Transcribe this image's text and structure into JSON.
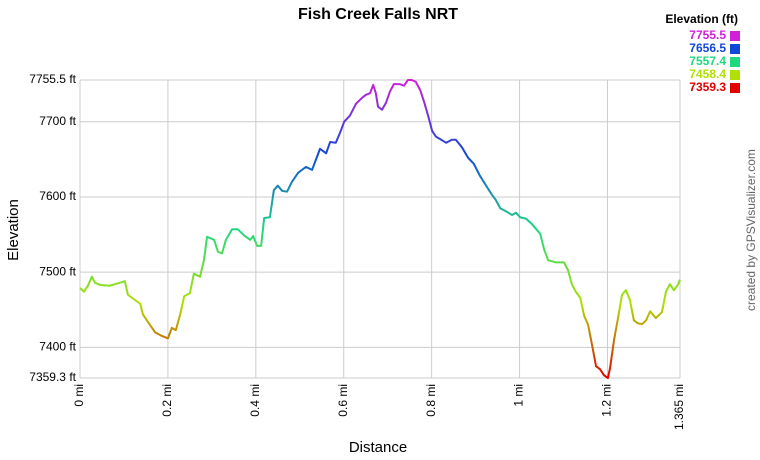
{
  "chart_data": {
    "type": "line",
    "title": "Fish Creek Falls NRT",
    "x_label": "Distance",
    "y_label": "Elevation",
    "credit": "created by GPSVisualizer.com",
    "legend": {
      "title": "Elevation (ft)",
      "entries": [
        {
          "value": 7755.5,
          "color": "#d020d8"
        },
        {
          "value": 7656.5,
          "color": "#1048d8"
        },
        {
          "value": 7557.4,
          "color": "#20d880"
        },
        {
          "value": 7458.4,
          "color": "#b0e000"
        },
        {
          "value": 7359.3,
          "color": "#e00000"
        }
      ]
    },
    "x": [
      0,
      0.009,
      0.018,
      0.027,
      0.034,
      0.046,
      0.068,
      0.091,
      0.102,
      0.109,
      0.125,
      0.137,
      0.143,
      0.159,
      0.171,
      0.187,
      0.2,
      0.209,
      0.218,
      0.228,
      0.237,
      0.25,
      0.259,
      0.273,
      0.282,
      0.289,
      0.305,
      0.314,
      0.323,
      0.332,
      0.346,
      0.359,
      0.373,
      0.387,
      0.394,
      0.403,
      0.412,
      0.419,
      0.432,
      0.441,
      0.45,
      0.46,
      0.471,
      0.482,
      0.496,
      0.514,
      0.528,
      0.537,
      0.546,
      0.56,
      0.569,
      0.582,
      0.592,
      0.601,
      0.614,
      0.628,
      0.642,
      0.651,
      0.66,
      0.667,
      0.673,
      0.678,
      0.687,
      0.696,
      0.705,
      0.714,
      0.728,
      0.737,
      0.746,
      0.755,
      0.764,
      0.774,
      0.783,
      0.792,
      0.801,
      0.81,
      0.819,
      0.833,
      0.846,
      0.855,
      0.869,
      0.883,
      0.896,
      0.91,
      0.924,
      0.937,
      0.946,
      0.956,
      0.969,
      0.983,
      0.992,
      1.001,
      1.015,
      1.028,
      1.047,
      1.056,
      1.065,
      1.083,
      1.101,
      1.11,
      1.119,
      1.128,
      1.138,
      1.147,
      1.156,
      1.165,
      1.174,
      1.183,
      1.192,
      1.201,
      1.206,
      1.215,
      1.224,
      1.233,
      1.242,
      1.251,
      1.26,
      1.269,
      1.279,
      1.288,
      1.297,
      1.31,
      1.324,
      1.333,
      1.342,
      1.351,
      1.36,
      1.365
    ],
    "series": [
      {
        "values": [
          7479,
          7474,
          7482,
          7494,
          7486,
          7483,
          7482,
          7486,
          7488,
          7470,
          7463,
          7458,
          7444,
          7430,
          7420,
          7415,
          7412,
          7426,
          7423,
          7444,
          7468,
          7472,
          7498,
          7494,
          7516,
          7547,
          7543,
          7527,
          7525,
          7543,
          7557,
          7557,
          7549,
          7543,
          7548,
          7535,
          7535,
          7572,
          7573,
          7609,
          7615,
          7608,
          7607,
          7620,
          7632,
          7640,
          7636,
          7650,
          7664,
          7658,
          7673,
          7672,
          7686,
          7700,
          7708,
          7724,
          7732,
          7736,
          7738,
          7749,
          7738,
          7720,
          7716,
          7725,
          7740,
          7750,
          7750,
          7748,
          7755.5,
          7755.5,
          7753,
          7742,
          7726,
          7708,
          7688,
          7680,
          7677,
          7672,
          7676,
          7676,
          7666,
          7652,
          7644,
          7628,
          7615,
          7603,
          7596,
          7585,
          7581,
          7576,
          7579,
          7573,
          7571,
          7564,
          7551,
          7530,
          7516,
          7513,
          7513,
          7503,
          7484,
          7474,
          7466,
          7442,
          7430,
          7403,
          7375,
          7371,
          7363,
          7359.3,
          7373,
          7410,
          7439,
          7470,
          7476,
          7463,
          7436,
          7432,
          7431,
          7436,
          7448,
          7439,
          7447,
          7474,
          7484,
          7476,
          7483,
          7490
        ]
      }
    ],
    "xlim": [
      0,
      1.365
    ],
    "ylim": [
      7359.3,
      7755.5
    ],
    "xticks": [
      {
        "value": 0,
        "label": "0 mi"
      },
      {
        "value": 0.2,
        "label": "0.2 mi"
      },
      {
        "value": 0.4,
        "label": "0.4 mi"
      },
      {
        "value": 0.6,
        "label": "0.6 mi"
      },
      {
        "value": 0.8,
        "label": "0.8 mi"
      },
      {
        "value": 1,
        "label": "1 mi"
      },
      {
        "value": 1.2,
        "label": "1.2 mi"
      },
      {
        "value": 1.365,
        "label": "1.365 mi"
      }
    ],
    "yticks": [
      {
        "value": 7359.3,
        "label": "7359.3 ft"
      },
      {
        "value": 7400,
        "label": "7400 ft"
      },
      {
        "value": 7500,
        "label": "7500 ft"
      },
      {
        "value": 7600,
        "label": "7600 ft"
      },
      {
        "value": 7700,
        "label": "7700 ft"
      },
      {
        "value": 7755.5,
        "label": "7755.5 ft"
      }
    ],
    "grid": true
  }
}
